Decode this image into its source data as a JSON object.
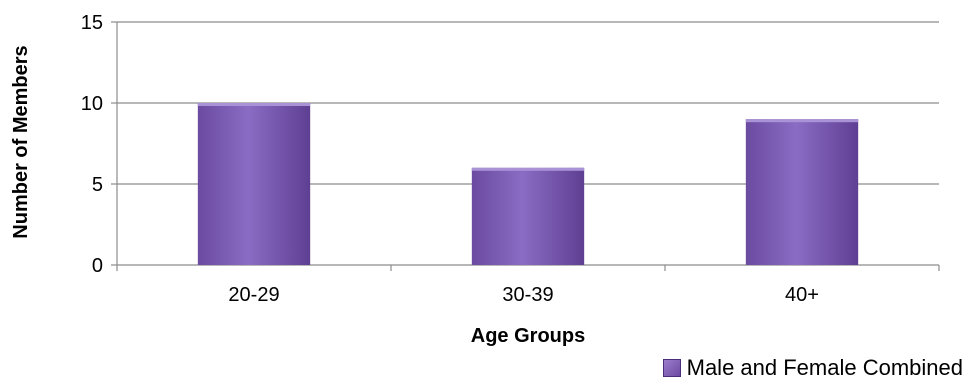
{
  "chart_data": {
    "type": "bar",
    "categories": [
      "20-29",
      "30-39",
      "40+"
    ],
    "series": [
      {
        "name": "Male and Female Combined",
        "values": [
          10,
          6,
          9
        ],
        "color": "#7b5bb6"
      }
    ],
    "xlabel": "Age Groups",
    "ylabel": "Number of Members",
    "ylim": [
      0,
      15
    ],
    "yticks": [
      0,
      5,
      10,
      15
    ],
    "grid": true,
    "legend_position": "bottom-right"
  }
}
